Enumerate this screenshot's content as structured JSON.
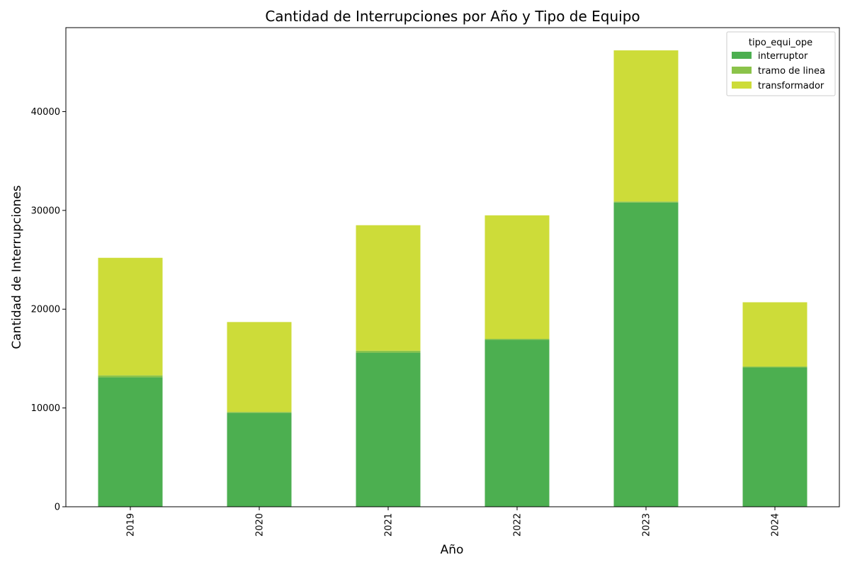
{
  "chart_data": {
    "type": "bar",
    "stacked": true,
    "title": "Cantidad de Interrupciones por Año y Tipo de Equipo",
    "xlabel": "Año",
    "ylabel": "Cantidad de Interrupciones",
    "categories": [
      "2019",
      "2020",
      "2021",
      "2022",
      "2023",
      "2024"
    ],
    "ylim": [
      0,
      48500
    ],
    "yticks": [
      0,
      10000,
      20000,
      30000,
      40000
    ],
    "legend": {
      "title": "tipo_equi_ope",
      "placement": "top-right"
    },
    "grid": false,
    "series": [
      {
        "name": "interruptor",
        "color": "#4caf50",
        "values": [
          13100,
          9500,
          15600,
          16900,
          30800,
          14100
        ]
      },
      {
        "name": "tramo de linea",
        "color": "#8bc34a",
        "values": [
          200,
          100,
          200,
          100,
          100,
          100
        ]
      },
      {
        "name": "transformador",
        "color": "#cddc39",
        "values": [
          11900,
          9100,
          12700,
          12500,
          15300,
          6500
        ]
      }
    ]
  }
}
